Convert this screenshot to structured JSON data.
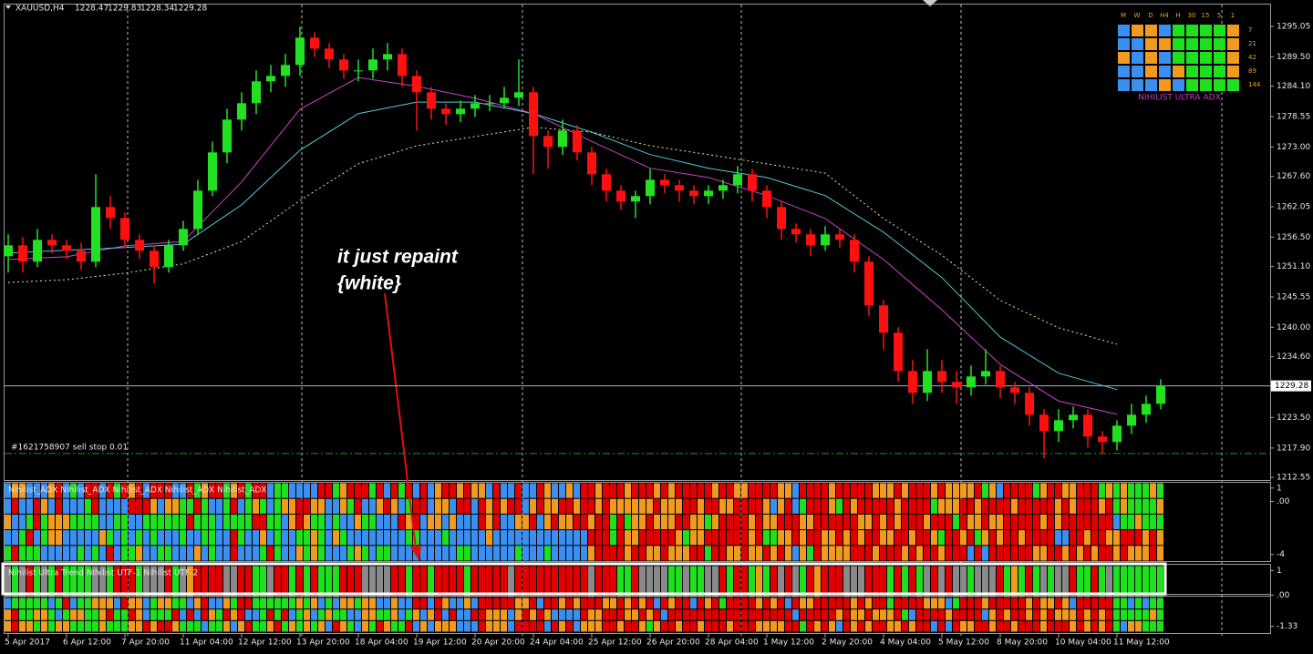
{
  "window": {
    "symbol": "XAUUSD,H4",
    "quote": [
      1228.47,
      1229.83,
      1228.34,
      1229.28
    ]
  },
  "chart_data": {
    "type": "candlestick",
    "categories": [
      "5 Apr 2017",
      null,
      null,
      null,
      "6 Apr 12:00",
      null,
      null,
      null,
      "7 Apr 20:00",
      null,
      null,
      null,
      "11 Apr 04:00",
      null,
      null,
      null,
      "12 Apr 12:00",
      null,
      null,
      null,
      "13 Apr 20:00",
      null,
      null,
      null,
      "18 Apr 04:00",
      null,
      null,
      null,
      "19 Apr 12:00",
      null,
      null,
      null,
      "20 Apr 20:00",
      null,
      null,
      null,
      "24 Apr 04:00",
      null,
      null,
      null,
      "25 Apr 12:00",
      null,
      null,
      null,
      "26 Apr 20:00",
      null,
      null,
      null,
      "28 Apr 04:00",
      null,
      null,
      null,
      "1 May 12:00",
      null,
      null,
      null,
      "2 May 20:00",
      null,
      null,
      null,
      "4 May 04:00",
      null,
      null,
      null,
      "5 May 12:00",
      null,
      null,
      null,
      "8 May 20:00",
      null,
      null,
      null,
      "10 May 04:00",
      null,
      null,
      null,
      "11 May 12:00",
      null,
      null,
      null
    ],
    "open": [
      1253,
      1255,
      1252,
      1256,
      1255,
      1254,
      1252,
      1262,
      1260,
      1256,
      1254,
      1251,
      1255,
      1258,
      1265,
      1272,
      1278,
      1281,
      1285,
      1286,
      1288,
      1293,
      1291,
      1289,
      1287,
      1287,
      1289,
      1290,
      1286,
      1283,
      1280,
      1279,
      1280,
      1281,
      1281,
      1282,
      1283,
      1275,
      1273,
      1276,
      1272,
      1268,
      1265,
      1263,
      1264,
      1267,
      1266,
      1265,
      1264,
      1265,
      1266,
      1268,
      1265,
      1262,
      1258,
      1257,
      1255,
      1257,
      1256,
      1252,
      1244,
      1239,
      1232,
      1228,
      1232,
      1230,
      1229,
      1231,
      1232,
      1229,
      1228,
      1224,
      1221,
      1223,
      1224,
      1220,
      1219,
      1222,
      1224,
      1226
    ],
    "high": [
      1257,
      1256.5,
      1258,
      1257,
      1256,
      1255.5,
      1268,
      1264,
      1261,
      1257,
      1255,
      1256,
      1259.5,
      1267,
      1274,
      1280,
      1283,
      1287,
      1288,
      1290,
      1295,
      1294,
      1292,
      1290,
      1289,
      1291,
      1292,
      1291,
      1287,
      1284,
      1281,
      1281.5,
      1282.5,
      1282.5,
      1284,
      1289,
      1284,
      1276,
      1278,
      1277,
      1273,
      1269,
      1266,
      1265,
      1269,
      1268,
      1267,
      1266,
      1266,
      1267,
      1269.5,
      1269,
      1266,
      1263,
      1259,
      1258,
      1258.5,
      1258,
      1257,
      1253,
      1245,
      1240,
      1234,
      1236,
      1234,
      1232,
      1233,
      1236,
      1233,
      1230,
      1229,
      1225,
      1225,
      1225.5,
      1225,
      1221,
      1223,
      1226,
      1227.5,
      1230.5
    ],
    "low": [
      1250,
      1250,
      1251,
      1253.5,
      1252.5,
      1250.5,
      1251,
      1258,
      1254.5,
      1252.5,
      1248,
      1250,
      1254,
      1257,
      1264,
      1270,
      1276,
      1279,
      1283,
      1284,
      1286,
      1289.5,
      1287.5,
      1285.5,
      1285,
      1285.5,
      1287,
      1284,
      1276,
      1278,
      1277,
      1277.5,
      1278.5,
      1279.5,
      1280,
      1280.5,
      1268,
      1269,
      1271.5,
      1270.5,
      1266,
      1263,
      1261.5,
      1260,
      1262.5,
      1264.5,
      1263,
      1262.5,
      1262.5,
      1263.5,
      1264.5,
      1263,
      1260,
      1256,
      1255.5,
      1253,
      1254,
      1254.5,
      1250,
      1242,
      1236,
      1230,
      1226,
      1226.5,
      1228,
      1226,
      1227.5,
      1229.5,
      1227,
      1226,
      1222,
      1216,
      1219,
      1221.5,
      1218,
      1217,
      1217.5,
      1220.5,
      1222.5,
      1225
    ],
    "close": [
      1255,
      1252,
      1256,
      1255,
      1254,
      1252,
      1262,
      1260,
      1256,
      1254,
      1251,
      1255,
      1258,
      1265,
      1272,
      1278,
      1281,
      1285,
      1286,
      1288,
      1293,
      1291,
      1289,
      1287,
      1287,
      1289,
      1290,
      1286,
      1283,
      1280,
      1279,
      1280,
      1281,
      1281,
      1282,
      1283,
      1275,
      1273,
      1276,
      1272,
      1268,
      1265,
      1263,
      1264,
      1267,
      1266,
      1265,
      1264,
      1265,
      1266,
      1268,
      1265,
      1262,
      1258,
      1257,
      1255,
      1257,
      1256,
      1252,
      1244,
      1239,
      1232,
      1228,
      1232,
      1230,
      1229,
      1231,
      1232,
      1229,
      1228,
      1224,
      1221,
      1223,
      1224,
      1220,
      1219,
      1222,
      1224,
      1226,
      1229.28
    ],
    "up_color": "#22e022",
    "down_color": "#ff1010",
    "ylim": [
      1212.05,
      1299.05
    ],
    "yticks": [
      1295.05,
      {
        "value": 1289.5,
        "label": "1289.50"
      },
      {
        "value": 1284.1,
        "label": "1284.10"
      },
      1278.55,
      {
        "value": 1273,
        "label": "1273.00"
      },
      {
        "value": 1267.6,
        "label": "1267.60"
      },
      1262.05,
      {
        "value": 1256.5,
        "label": "1256.50"
      },
      {
        "value": 1251.1,
        "label": "1251.10"
      },
      1245.55,
      {
        "value": 1240,
        "label": "1240.00"
      },
      {
        "value": 1234.6,
        "label": "1234.60"
      },
      {
        "value": 1223.5,
        "label": "1223.50"
      },
      {
        "value": 1217.9,
        "label": "1217.90"
      },
      1212.55
    ],
    "current_price": 1229.28,
    "overlays": [
      {
        "color": "#cc44cc",
        "dash": false,
        "x": [
          "5 Apr 2017",
          "6 Apr 12:00",
          "7 Apr 20:00",
          "11 Apr 04:00",
          "12 Apr 12:00",
          "13 Apr 20:00",
          "18 Apr 04:00",
          "19 Apr 12:00",
          "20 Apr 20:00",
          "24 Apr 04:00",
          "25 Apr 12:00",
          "26 Apr 20:00",
          "28 Apr 04:00",
          "1 May 12:00",
          "2 May 20:00",
          "4 May 04:00",
          "5 May 12:00",
          "8 May 20:00",
          "10 May 04:00",
          "11 May 12:00"
        ],
        "values": [
          1252.4,
          1252.9,
          1254.9,
          1255.7,
          1266.6,
          1279.9,
          1285.7,
          1284.1,
          1281.9,
          1279.1,
          1274,
          1269.1,
          1267.4,
          1264.1,
          1259.9,
          1252.4,
          1243.2,
          1233.2,
          1226.5,
          1224.1
        ]
      },
      {
        "color": "#55c8d8",
        "dash": false,
        "x": [
          "5 Apr 2017",
          "6 Apr 12:00",
          "7 Apr 20:00",
          "11 Apr 04:00",
          "12 Apr 12:00",
          "13 Apr 20:00",
          "18 Apr 04:00",
          "19 Apr 12:00",
          "20 Apr 20:00",
          "24 Apr 04:00",
          "25 Apr 12:00",
          "26 Apr 20:00",
          "28 Apr 04:00",
          "1 May 12:00",
          "2 May 20:00",
          "4 May 04:00",
          "5 May 12:00",
          "8 May 20:00",
          "10 May 04:00",
          "11 May 12:00"
        ],
        "values": [
          1253.6,
          1254.1,
          1254.6,
          1255.2,
          1262.4,
          1272.4,
          1279.1,
          1281.2,
          1281.2,
          1279.1,
          1275.7,
          1271.6,
          1269.1,
          1267.4,
          1264.1,
          1257.4,
          1249.1,
          1238.2,
          1231.6,
          1228.6
        ]
      },
      {
        "color": "#e8e890",
        "dash": true,
        "x": [
          "5 Apr 2017",
          "6 Apr 12:00",
          "7 Apr 20:00",
          "11 Apr 04:00",
          "12 Apr 12:00",
          "13 Apr 20:00",
          "18 Apr 04:00",
          "19 Apr 12:00",
          "20 Apr 20:00",
          "24 Apr 04:00",
          "25 Apr 12:00",
          "26 Apr 20:00",
          "28 Apr 04:00",
          "1 May 12:00",
          "2 May 20:00",
          "4 May 04:00",
          "5 May 12:00",
          "8 May 20:00",
          "10 May 04:00",
          "11 May 12:00"
        ],
        "values": [
          1248.2,
          1248.7,
          1249.9,
          1251.6,
          1255.7,
          1263.2,
          1269.9,
          1273.2,
          1274.9,
          1276.6,
          1275.7,
          1273.2,
          1271.6,
          1269.9,
          1268.2,
          1259.9,
          1253.2,
          1244.9,
          1239.9,
          1236.9
        ]
      }
    ],
    "order": {
      "label": "#1621758907 sell stop 0.01",
      "price": 1216.9,
      "color": "#1a9a1a"
    }
  },
  "annotation": {
    "lines": [
      "it just repaint",
      "{white}"
    ]
  },
  "indicator_colors": [
    "#e00000",
    "#f09a20",
    "#3a8ff0",
    "#1ee01e",
    "#8a8a8a"
  ],
  "indicators": [
    {
      "label": "Nihilist_ADX  Nihilist_ADX  Nihilist_ADX  Nihilist_ADX  Nihilist_ADX",
      "ylim": [
        -4.5,
        1.4
      ],
      "yticks": [
        1,
        {
          "value": 0,
          "label": ".00"
        },
        -4
      ]
    },
    {
      "label": "Nihilist Ultra Trend  Nihilist UTF-1  Nihilist UTF-2",
      "ylim": [
        -0.1,
        1.2
      ],
      "yticks": [
        1,
        {
          "value": 0,
          "label": ".00"
        }
      ]
    },
    {
      "ylim": [
        -1.5,
        -0.5
      ],
      "yticks": [
        -1.33
      ]
    }
  ],
  "mtf_panel": {
    "timeframes": [
      "M",
      "W",
      "D",
      "H4",
      "H",
      "30",
      "15",
      "5",
      "1"
    ],
    "periods": [
      7,
      21,
      42,
      89,
      144
    ],
    "title": "NIHILIST ULTRA ADX"
  }
}
